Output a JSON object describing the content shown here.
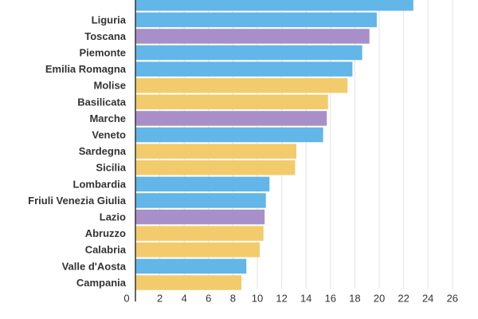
{
  "chart_data": {
    "type": "bar",
    "orientation": "horizontal",
    "categories": [
      "",
      "Liguria",
      "Toscana",
      "Piemonte",
      "Emilia Romagna",
      "Molise",
      "Basilicata",
      "Marche",
      "Veneto",
      "Sardegna",
      "Sicilia",
      "Lombardia",
      "Friuli Venezia Giulia",
      "Lazio",
      "Abruzzo",
      "Calabria",
      "Valle d'Aosta",
      "Campania"
    ],
    "values": [
      22.8,
      19.8,
      19.2,
      18.6,
      17.8,
      17.4,
      15.8,
      15.7,
      15.4,
      13.2,
      13.1,
      11.0,
      10.7,
      10.6,
      10.5,
      10.2,
      9.1,
      8.7
    ],
    "groups": [
      "north",
      "north",
      "center",
      "north",
      "north",
      "south",
      "south",
      "center",
      "north",
      "south",
      "south",
      "north",
      "north",
      "center",
      "south",
      "south",
      "north",
      "south"
    ],
    "group_colors": {
      "north": "#62b6e8",
      "center": "#a88fc9",
      "south": "#f2cb6c"
    },
    "xlim": [
      0,
      27
    ],
    "x_ticks": [
      0,
      2,
      4,
      6,
      8,
      10,
      12,
      14,
      16,
      18,
      20,
      22,
      24,
      26
    ],
    "grid": true,
    "title": "",
    "xlabel": "",
    "ylabel": ""
  }
}
